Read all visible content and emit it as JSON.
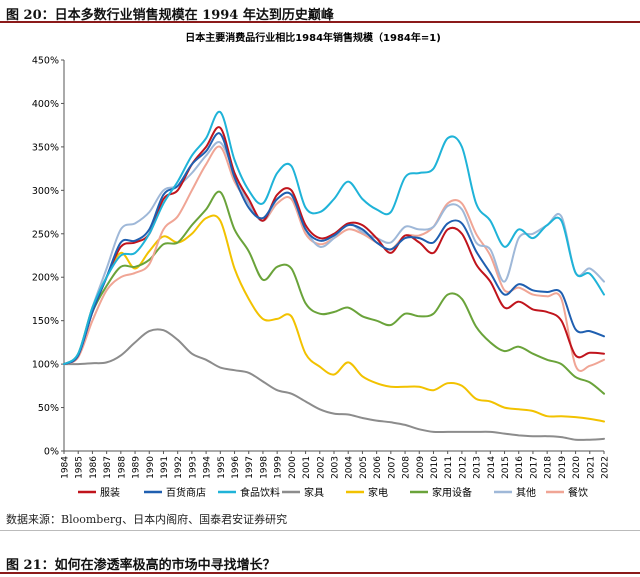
{
  "figure": {
    "title": "图 20：日本多数行业销售规模在 1994 年达到历史巅峰",
    "source": "数据来源：Bloomberg、日本内阁府、国泰君安证券研究",
    "next_title": "图 21：如何在渗透率极高的市场中寻找增长？"
  },
  "chart_data": {
    "type": "line",
    "title": "日本主要消费品行业相比1984年销售规模（1984年=1)",
    "ylim": [
      0,
      450
    ],
    "y_ticks": [
      "0%",
      "50%",
      "100%",
      "150%",
      "200%",
      "250%",
      "300%",
      "350%",
      "400%",
      "450%"
    ],
    "x": [
      1984,
      1985,
      1986,
      1987,
      1988,
      1989,
      1990,
      1991,
      1992,
      1993,
      1994,
      1995,
      1996,
      1997,
      1998,
      1999,
      2000,
      2001,
      2002,
      2003,
      2004,
      2005,
      2006,
      2007,
      2008,
      2009,
      2010,
      2011,
      2012,
      2013,
      2014,
      2015,
      2016,
      2017,
      2018,
      2019,
      2020,
      2021,
      2022
    ],
    "legend_position": "bottom",
    "series": [
      {
        "name": "服装",
        "color": "#c0141c",
        "values": [
          100,
          110,
          160,
          200,
          235,
          240,
          250,
          290,
          300,
          330,
          350,
          372,
          320,
          290,
          265,
          295,
          300,
          260,
          245,
          250,
          262,
          260,
          245,
          228,
          248,
          240,
          228,
          255,
          250,
          215,
          195,
          165,
          172,
          163,
          160,
          150,
          110,
          113,
          112
        ]
      },
      {
        "name": "百货商店",
        "color": "#1f5fb0",
        "values": [
          100,
          110,
          160,
          200,
          240,
          242,
          255,
          295,
          305,
          330,
          345,
          365,
          315,
          280,
          268,
          290,
          295,
          255,
          242,
          248,
          260,
          255,
          240,
          232,
          245,
          245,
          240,
          262,
          262,
          230,
          205,
          180,
          192,
          185,
          183,
          182,
          140,
          138,
          132
        ]
      },
      {
        "name": "食品饮料",
        "color": "#1fb3d8",
        "values": [
          100,
          112,
          165,
          200,
          225,
          228,
          250,
          285,
          310,
          340,
          360,
          390,
          335,
          300,
          285,
          320,
          328,
          280,
          275,
          290,
          310,
          290,
          278,
          275,
          315,
          320,
          325,
          360,
          350,
          285,
          265,
          235,
          255,
          245,
          260,
          265,
          205,
          204,
          180
        ]
      },
      {
        "name": "家具",
        "color": "#8c8c8c",
        "values": [
          100,
          100,
          101,
          102,
          110,
          125,
          138,
          139,
          128,
          112,
          105,
          96,
          93,
          90,
          80,
          70,
          66,
          57,
          48,
          43,
          42,
          38,
          35,
          33,
          30,
          25,
          22,
          22,
          22,
          22,
          22,
          20,
          18,
          17,
          17,
          16,
          13,
          13,
          14
        ]
      },
      {
        "name": "家电",
        "color": "#f2c200",
        "values": [
          100,
          112,
          165,
          200,
          228,
          210,
          230,
          247,
          240,
          250,
          268,
          265,
          210,
          175,
          152,
          152,
          155,
          112,
          97,
          88,
          102,
          86,
          78,
          74,
          74,
          74,
          70,
          78,
          75,
          60,
          57,
          50,
          48,
          46,
          40,
          40,
          39,
          37,
          34
        ]
      },
      {
        "name": "家用设备",
        "color": "#6aa33a",
        "values": [
          100,
          110,
          160,
          190,
          212,
          212,
          220,
          238,
          240,
          260,
          278,
          298,
          255,
          230,
          197,
          212,
          210,
          170,
          158,
          160,
          165,
          155,
          150,
          145,
          158,
          155,
          158,
          180,
          175,
          143,
          125,
          115,
          120,
          112,
          105,
          100,
          85,
          79,
          66
        ]
      },
      {
        "name": "其他",
        "color": "#9fb8d8",
        "values": [
          100,
          112,
          165,
          210,
          255,
          262,
          275,
          300,
          305,
          320,
          340,
          355,
          320,
          285,
          265,
          290,
          295,
          255,
          235,
          245,
          262,
          252,
          245,
          240,
          258,
          255,
          258,
          282,
          278,
          240,
          232,
          195,
          245,
          250,
          260,
          270,
          205,
          210,
          195
        ]
      },
      {
        "name": "餐饮",
        "color": "#f0a595",
        "values": [
          100,
          108,
          150,
          185,
          200,
          205,
          215,
          255,
          270,
          300,
          330,
          350,
          310,
          285,
          265,
          285,
          290,
          250,
          238,
          245,
          255,
          250,
          240,
          232,
          248,
          248,
          258,
          285,
          285,
          250,
          225,
          185,
          188,
          180,
          178,
          175,
          98,
          98,
          105
        ]
      }
    ]
  }
}
